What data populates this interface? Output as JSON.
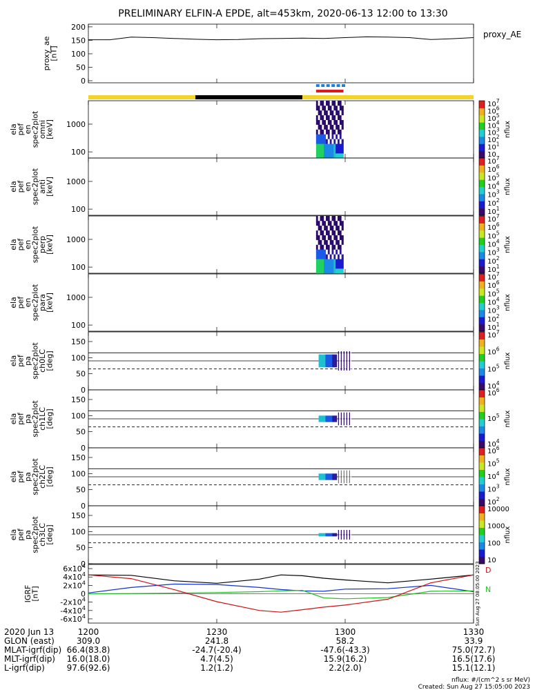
{
  "title": "PRELIMINARY ELFIN-A EPDE, alt=453km, 2020-06-13 12:00 to 13:30",
  "colors": {
    "sun": "#f2d42a",
    "shadow": "#000000",
    "fast_survey": "#1e7fe0",
    "science_zone": "#e01818",
    "grf_black": "#000000",
    "grf_blue": "#1030d0",
    "grf_green": "#20c020",
    "grf_red": "#d01010"
  },
  "panels": {
    "ae": {
      "ylabel": "proxy_ae\n[nT]",
      "legend": "proxy_AE",
      "ticks": [
        "0",
        "50",
        "100",
        "150",
        "200"
      ],
      "ymin": 0,
      "ymax": 210
    },
    "spec": [
      {
        "ylabel": "ela\npef\nen\nspec2plot\nomni\n[keV]",
        "ticks": [
          "100",
          "1000"
        ],
        "cbar_ticks": [
          "10",
          "10^1",
          "10^2",
          "10^3",
          "10^4",
          "10^5",
          "10^6",
          "10^7"
        ]
      },
      {
        "ylabel": "ela\npef\nen\nspec2plot\nanti\n[keV]",
        "ticks": [
          "100",
          "1000"
        ],
        "cbar_ticks": [
          "10^1",
          "10^2",
          "10^3",
          "10^4",
          "10^5",
          "10^6",
          "10^7"
        ]
      },
      {
        "ylabel": "ela\npef\nen\nspec2plot\nperp\n[keV]",
        "ticks": [
          "100",
          "1000"
        ],
        "cbar_ticks": [
          "10^1",
          "10^2",
          "10^3",
          "10^4",
          "10^5",
          "10^6",
          "10^7"
        ]
      },
      {
        "ylabel": "ela\npef\nen\nspec2plot\npara\n[keV]",
        "ticks": [
          "100",
          "1000"
        ],
        "cbar_ticks": [
          "10^1",
          "10^2",
          "10^3",
          "10^4",
          "10^5",
          "10^6",
          "10^7"
        ]
      }
    ],
    "pa": [
      {
        "ylabel": "ela\npef\npa\nspec2plot\nch0LC\n[deg]",
        "ticks": [
          "0",
          "50",
          "100",
          "150"
        ],
        "cbar_ticks": [
          "10^4",
          "10^5",
          "10^6",
          "10^7"
        ]
      },
      {
        "ylabel": "ela\npef\npa\nspec2plot\nch1LC\n[deg]",
        "ticks": [
          "0",
          "50",
          "100",
          "150"
        ],
        "cbar_ticks": [
          "10^4",
          "10^5",
          "10^6"
        ]
      },
      {
        "ylabel": "ela\npef\npa\nspec2plot\nch2LC\n[deg]",
        "ticks": [
          "0",
          "50",
          "100",
          "150"
        ],
        "cbar_ticks": [
          "10^2",
          "10^3",
          "10^4",
          "10^5",
          "10^6"
        ]
      },
      {
        "ylabel": "ela\npef\npa\nspec2plot\nch3LC\n[deg]",
        "ticks": [
          "0",
          "50",
          "100",
          "150"
        ],
        "cbar_ticks": [
          "10",
          "100",
          "1000",
          "10000"
        ]
      }
    ],
    "igrf": {
      "ylabel": "IGRF\n[nT]",
      "ticks": [
        "-6x10^4",
        "-4x10^4",
        "-2x10^4",
        "0",
        "2x10^4",
        "4x10^4",
        "6x10^4"
      ]
    },
    "cbar_label": "nflux",
    "igrf_side_labels": [
      "D",
      "N"
    ],
    "stamp": "Sun Aug 27 08:05:00 2023"
  },
  "footer": {
    "rows": [
      {
        "label": "2020 Jun 13",
        "values": [
          "1200",
          "1230",
          "1300",
          "1330"
        ]
      },
      {
        "label": "GLON (east)",
        "values": [
          "309.0",
          "241.8",
          "58.2",
          "33.9"
        ]
      },
      {
        "label": "MLAT-igrf(dip)",
        "values": [
          "66.4(83.8)",
          "-24.7(-20.4)",
          "-47.6(-43.3)",
          "75.0(72.7)"
        ]
      },
      {
        "label": "MLT-igrf(dip)",
        "values": [
          "16.0(18.0)",
          "4.7(4.5)",
          "15.9(16.2)",
          "16.5(17.6)"
        ]
      },
      {
        "label": "L-igrf(dip)",
        "values": [
          "97.6(92.6)",
          "1.2(1.2)",
          "2.2(2.0)",
          "15.1(12.1)"
        ]
      }
    ],
    "units_note": "nflux: #/(cm^2 s sr MeV)",
    "created": "Created: Sun Aug 27 15:05:00 2023"
  },
  "chart_data": {
    "type": "line",
    "time_axis": {
      "start": "12:00",
      "end": "13:30",
      "ticks": [
        "1200",
        "1230",
        "1300",
        "1330"
      ]
    },
    "proxy_ae": {
      "t_min": [
        0,
        5,
        10,
        15,
        20,
        25,
        30,
        35,
        40,
        45,
        50,
        55,
        60,
        65,
        70,
        75,
        80,
        85,
        90
      ],
      "values": [
        152,
        152,
        162,
        160,
        157,
        154,
        152,
        153,
        156,
        157,
        158,
        157,
        160,
        163,
        162,
        160,
        153,
        156,
        160
      ]
    },
    "orbit_bars": {
      "sunlight_min": [
        [
          0,
          25
        ],
        [
          50,
          90
        ]
      ],
      "shadow_min": [
        [
          25,
          50
        ]
      ],
      "fast_survey_min": [
        [
          53.2,
          59.6
        ]
      ],
      "science_zone_min": [
        [
          53.2,
          59.6
        ]
      ]
    },
    "igrf": {
      "t_min": [
        0,
        10,
        20,
        30,
        40,
        45,
        50,
        55,
        60,
        70,
        80,
        90
      ],
      "series": [
        {
          "values": [
            45000,
            44000,
            31000,
            25000,
            35000,
            45000,
            43000,
            37000,
            33000,
            26000,
            35000,
            45000
          ]
        },
        {
          "values": [
            2000,
            15000,
            23000,
            22000,
            15000,
            10000,
            7000,
            6000,
            11000,
            12000,
            20000,
            5000
          ]
        },
        {
          "values": [
            0,
            500,
            1500,
            3000,
            5000,
            7000,
            8000,
            -10000,
            -12000,
            -9000,
            6000,
            7000
          ]
        },
        {
          "values": [
            45000,
            36000,
            10000,
            -19000,
            -40000,
            -44000,
            -38000,
            -32000,
            -27000,
            -13000,
            26000,
            45000
          ]
        }
      ]
    },
    "energy_spectra": {
      "t_min_range": [
        53.2,
        59.6
      ],
      "energy_kev_range": [
        60,
        7000
      ],
      "note_colors": "high flux (green) at low energy, decreasing to blue/purple at high energy"
    },
    "pitch_angle": {
      "ylim": [
        0,
        180
      ],
      "loss_cone_deg": [
        65,
        90,
        115
      ],
      "channels": [
        {
          "t_min_range": [
            53.8,
            59.3
          ],
          "pa_range": [
            60,
            120
          ]
        },
        {
          "t_min_range": [
            53.8,
            59.3
          ],
          "pa_range": [
            70,
            110
          ]
        },
        {
          "t_min_range": [
            53.8,
            59.3
          ],
          "pa_range": [
            70,
            110
          ]
        },
        {
          "t_min_range": [
            53.8,
            59.3
          ],
          "pa_range": [
            75,
            105
          ]
        }
      ]
    }
  }
}
